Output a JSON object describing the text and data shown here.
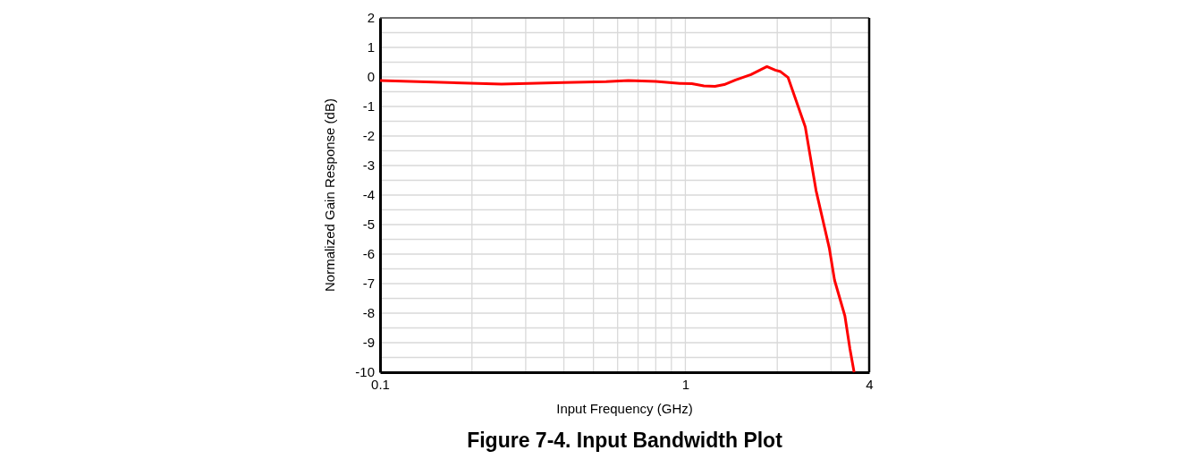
{
  "chart_data": {
    "type": "line",
    "title": "Figure 7-4. Input Bandwidth Plot",
    "xlabel": "Input Frequency (GHz)",
    "ylabel": "Normalized Gain Response (dB)",
    "log": "x",
    "grid": true,
    "marker": "none",
    "line_style": "solid",
    "xlim": [
      0.1,
      4
    ],
    "ylim": [
      -10,
      2
    ],
    "xticks": [
      0.1,
      {
        "value": 0.2,
        "label": null
      },
      {
        "value": 0.3,
        "label": null
      },
      {
        "value": 0.4,
        "label": null
      },
      {
        "value": 0.5,
        "label": null
      },
      {
        "value": 0.6,
        "label": null
      },
      {
        "value": 0.7,
        "label": null
      },
      {
        "value": 0.8,
        "label": null
      },
      {
        "value": 0.9,
        "label": null
      },
      1,
      {
        "value": 2,
        "label": null
      },
      {
        "value": 3,
        "label": null
      },
      4
    ],
    "yticks": [
      -10,
      {
        "value": -9.5,
        "label": null
      },
      -9,
      {
        "value": -8.5,
        "label": null
      },
      -8,
      {
        "value": -7.5,
        "label": null
      },
      -7,
      {
        "value": -6.5,
        "label": null
      },
      -6,
      {
        "value": -5.5,
        "label": null
      },
      -5,
      {
        "value": -4.5,
        "label": null
      },
      -4,
      {
        "value": -3.5,
        "label": null
      },
      -3,
      {
        "value": -2.5,
        "label": null
      },
      -2,
      {
        "value": -1.5,
        "label": null
      },
      -1,
      {
        "value": -0.5,
        "label": null
      },
      0,
      {
        "value": 0.5,
        "label": null
      },
      1,
      {
        "value": 1.5,
        "label": null
      },
      2
    ],
    "series": [
      {
        "color": "#ff0000",
        "x": [
          0.1,
          0.25,
          0.4,
          0.55,
          0.65,
          0.8,
          0.96,
          1.05,
          1.15,
          1.25,
          1.34,
          1.46,
          1.64,
          1.85,
          1.97,
          2.05,
          2.17,
          2.47,
          2.68,
          2.96,
          3.08,
          3.33,
          3.46,
          3.57
        ],
        "values": [
          -0.12,
          -0.24,
          -0.19,
          -0.16,
          -0.12,
          -0.15,
          -0.22,
          -0.23,
          -0.3,
          -0.32,
          -0.26,
          -0.1,
          0.08,
          0.35,
          0.23,
          0.18,
          -0.02,
          -1.69,
          -3.85,
          -5.79,
          -6.88,
          -8.09,
          -9.21,
          -10
        ]
      }
    ]
  }
}
